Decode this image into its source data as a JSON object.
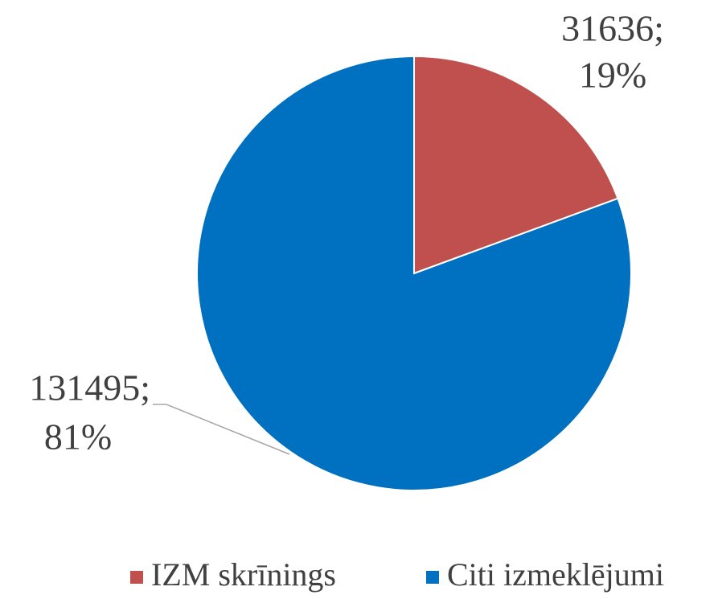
{
  "chart_data": {
    "type": "pie",
    "categories": [
      "IZM skrīnings",
      "Citi izmeklējumi"
    ],
    "values": [
      31636,
      131495
    ],
    "value_labels": [
      "31636;",
      "131495;"
    ],
    "percents": [
      19,
      81
    ],
    "percent_labels": [
      "19%",
      "81%"
    ],
    "colors": [
      "#c0504d",
      "#0070c0"
    ],
    "legend": "bottom"
  }
}
